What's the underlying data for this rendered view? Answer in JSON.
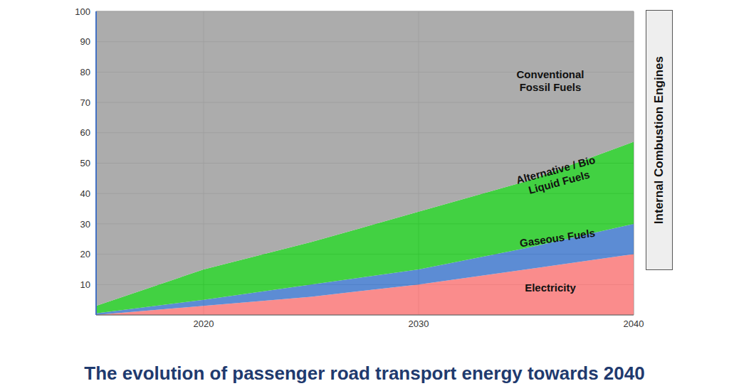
{
  "chart_data": {
    "type": "area",
    "title": "The evolution of passenger road transport energy towards 2040",
    "annotation": "Internal Combustion Engines",
    "x": [
      2015,
      2020,
      2025,
      2030,
      2035,
      2040
    ],
    "stacked": true,
    "grid": true,
    "xlim": [
      2015,
      2040
    ],
    "xticks": [
      2020,
      2030,
      2040
    ],
    "ylim": [
      0,
      100
    ],
    "yticks": [
      10,
      20,
      30,
      40,
      50,
      60,
      70,
      80,
      90,
      100
    ],
    "series": [
      {
        "name": "Electricity",
        "color": "#f97f7f",
        "values": [
          0,
          3,
          6,
          10,
          15,
          20
        ]
      },
      {
        "name": "Gaseous Fuels",
        "color": "#4a7fcf",
        "values": [
          0.5,
          2,
          4,
          5,
          7,
          10
        ]
      },
      {
        "name": "Alternative / Bio Liquid Fuels",
        "color": "#2ecc2e",
        "values": [
          2.5,
          10,
          14,
          19,
          22,
          27
        ]
      },
      {
        "name": "Conventional Fossil Fuels",
        "color": "#a3a3a3",
        "values": [
          97,
          85,
          76,
          66,
          56,
          43
        ]
      }
    ]
  }
}
